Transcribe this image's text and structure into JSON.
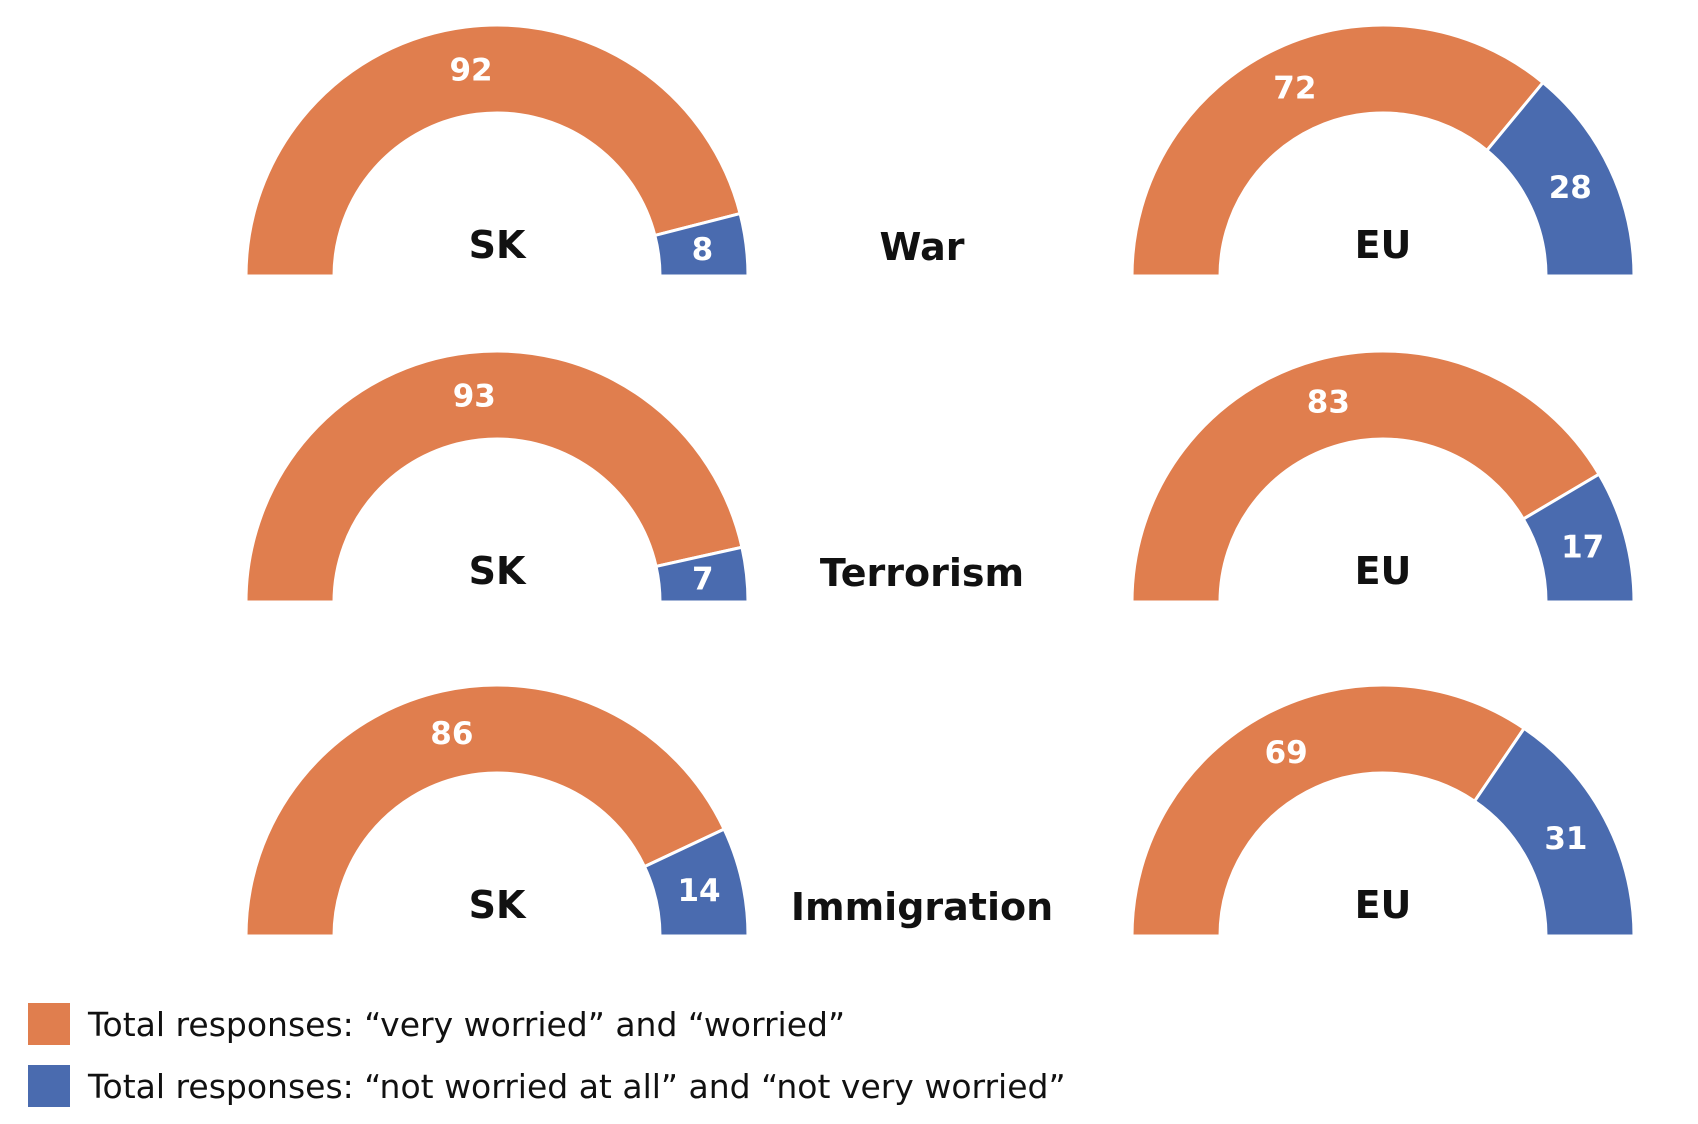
{
  "colors": {
    "worried": "#E07E4E",
    "not_worried": "#4A6BAF"
  },
  "chart_data": {
    "type": "pie",
    "variant": "semi-donut",
    "legend_placement": "bottom-left",
    "series": [
      {
        "name": "Total responses: “very worried” and “worried”",
        "color": "#E07E4E"
      },
      {
        "name": "Total responses: “not worried at all” and “not very worried”",
        "color": "#4A6BAF"
      }
    ],
    "charts": [
      {
        "topic": "War",
        "region": "SK",
        "values": [
          92,
          8
        ]
      },
      {
        "topic": "War",
        "region": "EU",
        "values": [
          72,
          28
        ]
      },
      {
        "topic": "Terrorism",
        "region": "SK",
        "values": [
          93,
          7
        ]
      },
      {
        "topic": "Terrorism",
        "region": "EU",
        "values": [
          83,
          17
        ]
      },
      {
        "topic": "Immigration",
        "region": "SK",
        "values": [
          86,
          14
        ]
      },
      {
        "topic": "Immigration",
        "region": "EU",
        "values": [
          69,
          31
        ]
      }
    ],
    "topics": [
      "War",
      "Terrorism",
      "Immigration"
    ]
  },
  "legend": {
    "items": [
      {
        "label": "Total responses: “very worried” and “worried”",
        "color": "#E07E4E"
      },
      {
        "label": "Total responses: “not worried at all” and “not very worried”",
        "color": "#4A6BAF"
      }
    ]
  }
}
